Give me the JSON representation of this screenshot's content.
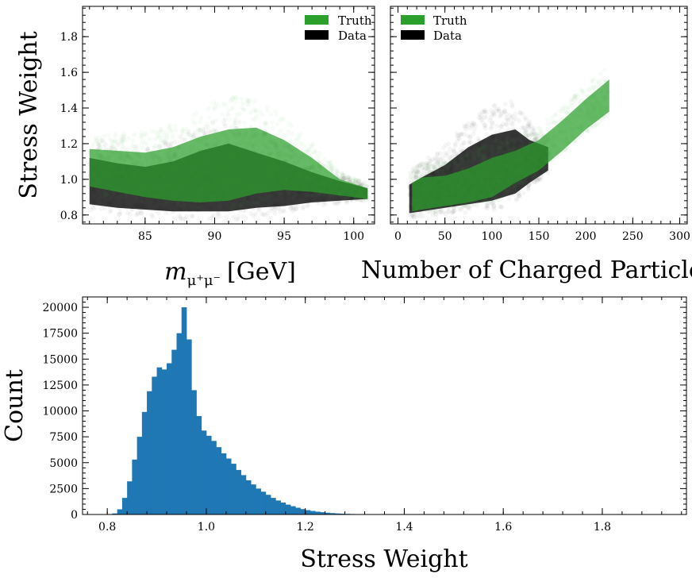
{
  "chart_data": [
    {
      "type": "scatter",
      "panel": "top-left",
      "xlabel_math": "m",
      "xlabel_sub": "μ⁺μ⁻",
      "xlabel_unit": "[GeV]",
      "ylabel": "Stress Weight",
      "xlim": [
        80.5,
        101.5
      ],
      "ylim": [
        0.75,
        1.97
      ],
      "xticks": [
        85,
        90,
        95,
        100
      ],
      "xtick_labels": [
        "85",
        "90",
        "95",
        "100"
      ],
      "yticks": [
        0.8,
        1.0,
        1.2,
        1.4,
        1.6,
        1.8
      ],
      "ytick_labels": [
        "0.8",
        "1.0",
        "1.2",
        "1.4",
        "1.6",
        "1.8"
      ],
      "legend": [
        {
          "label": "Truth",
          "color": "#2ca02c"
        },
        {
          "label": "Data",
          "color": "#000000"
        }
      ],
      "legend_position": "top-right",
      "series": [
        {
          "name": "Data",
          "color": "#000000",
          "upper_envelope": [
            [
              81,
              1.12
            ],
            [
              83,
              1.09
            ],
            [
              85,
              1.07
            ],
            [
              87,
              1.1
            ],
            [
              89,
              1.16
            ],
            [
              91,
              1.2
            ],
            [
              93,
              1.15
            ],
            [
              95,
              1.1
            ],
            [
              97,
              1.04
            ],
            [
              99,
              0.99
            ],
            [
              101,
              0.95
            ]
          ],
          "lower_envelope": [
            [
              81,
              0.86
            ],
            [
              83,
              0.84
            ],
            [
              85,
              0.83
            ],
            [
              87,
              0.82
            ],
            [
              89,
              0.82
            ],
            [
              91,
              0.82
            ],
            [
              93,
              0.84
            ],
            [
              95,
              0.85
            ],
            [
              97,
              0.87
            ],
            [
              99,
              0.88
            ],
            [
              101,
              0.89
            ]
          ]
        },
        {
          "name": "Truth",
          "color": "#2ca02c",
          "upper_envelope": [
            [
              81,
              1.17
            ],
            [
              83,
              1.16
            ],
            [
              85,
              1.15
            ],
            [
              87,
              1.18
            ],
            [
              89,
              1.24
            ],
            [
              91,
              1.28
            ],
            [
              93,
              1.29
            ],
            [
              95,
              1.22
            ],
            [
              97,
              1.12
            ],
            [
              99,
              1.0
            ],
            [
              101,
              0.95
            ]
          ],
          "lower_envelope": [
            [
              81,
              0.96
            ],
            [
              83,
              0.93
            ],
            [
              85,
              0.9
            ],
            [
              87,
              0.88
            ],
            [
              89,
              0.87
            ],
            [
              91,
              0.88
            ],
            [
              93,
              0.92
            ],
            [
              95,
              0.94
            ],
            [
              97,
              0.93
            ],
            [
              99,
              0.91
            ],
            [
              101,
              0.89
            ]
          ]
        }
      ]
    },
    {
      "type": "scatter",
      "panel": "top-right",
      "xlabel": "Number of Charged Particles",
      "xlim": [
        -8,
        308
      ],
      "ylim": [
        0.75,
        1.97
      ],
      "xticks": [
        0,
        50,
        100,
        150,
        200,
        250,
        300
      ],
      "xtick_labels": [
        "0",
        "50",
        "100",
        "150",
        "200",
        "250",
        "300"
      ],
      "legend": [
        {
          "label": "Truth",
          "color": "#2ca02c"
        },
        {
          "label": "Data",
          "color": "#000000"
        }
      ],
      "legend_position": "top-left",
      "series": [
        {
          "name": "Data",
          "color": "#000000",
          "upper_envelope": [
            [
              12,
              0.97
            ],
            [
              25,
              1.01
            ],
            [
              50,
              1.08
            ],
            [
              75,
              1.18
            ],
            [
              100,
              1.25
            ],
            [
              125,
              1.28
            ],
            [
              140,
              1.22
            ],
            [
              160,
              1.18
            ]
          ],
          "lower_envelope": [
            [
              12,
              0.81
            ],
            [
              25,
              0.82
            ],
            [
              50,
              0.84
            ],
            [
              75,
              0.86
            ],
            [
              100,
              0.88
            ],
            [
              125,
              0.92
            ],
            [
              140,
              0.98
            ],
            [
              160,
              1.05
            ]
          ]
        },
        {
          "name": "Truth",
          "color": "#2ca02c",
          "upper_envelope": [
            [
              15,
              0.98
            ],
            [
              25,
              1.01
            ],
            [
              50,
              1.02
            ],
            [
              75,
              1.06
            ],
            [
              100,
              1.12
            ],
            [
              125,
              1.16
            ],
            [
              150,
              1.22
            ],
            [
              175,
              1.33
            ],
            [
              200,
              1.45
            ],
            [
              225,
              1.56
            ]
          ],
          "lower_envelope": [
            [
              15,
              0.82
            ],
            [
              25,
              0.83
            ],
            [
              50,
              0.85
            ],
            [
              75,
              0.87
            ],
            [
              100,
              0.9
            ],
            [
              125,
              0.98
            ],
            [
              150,
              1.05
            ],
            [
              175,
              1.16
            ],
            [
              200,
              1.28
            ],
            [
              225,
              1.38
            ]
          ]
        }
      ]
    },
    {
      "type": "bar",
      "panel": "bottom",
      "xlabel": "Stress Weight",
      "ylabel": "Count",
      "xlim": [
        0.75,
        1.97
      ],
      "ylim": [
        0,
        21000
      ],
      "xticks": [
        0.8,
        1.0,
        1.2,
        1.4,
        1.6,
        1.8
      ],
      "xtick_labels": [
        "0.8",
        "1.0",
        "1.2",
        "1.4",
        "1.6",
        "1.8"
      ],
      "yticks": [
        0,
        2500,
        5000,
        7500,
        10000,
        12500,
        15000,
        17500,
        20000
      ],
      "ytick_labels": [
        "0",
        "2500",
        "5000",
        "7500",
        "10000",
        "12500",
        "15000",
        "17500",
        "20000"
      ],
      "bin_start": 0.81,
      "bin_width": 0.01,
      "color": "#1f77b4",
      "values": [
        100,
        500,
        1600,
        3200,
        5300,
        7500,
        9900,
        11900,
        13300,
        14200,
        14000,
        14600,
        15900,
        17500,
        20000,
        16900,
        12000,
        9500,
        8100,
        7600,
        7100,
        6500,
        5900,
        5400,
        4900,
        4300,
        3800,
        3300,
        2900,
        2500,
        2200,
        1900,
        1600,
        1350,
        1150,
        950,
        800,
        650,
        520,
        420,
        340,
        270,
        220,
        170,
        130,
        100,
        80,
        60,
        45,
        35,
        25,
        20,
        15,
        10,
        8,
        6,
        5,
        4,
        3,
        2
      ]
    }
  ]
}
